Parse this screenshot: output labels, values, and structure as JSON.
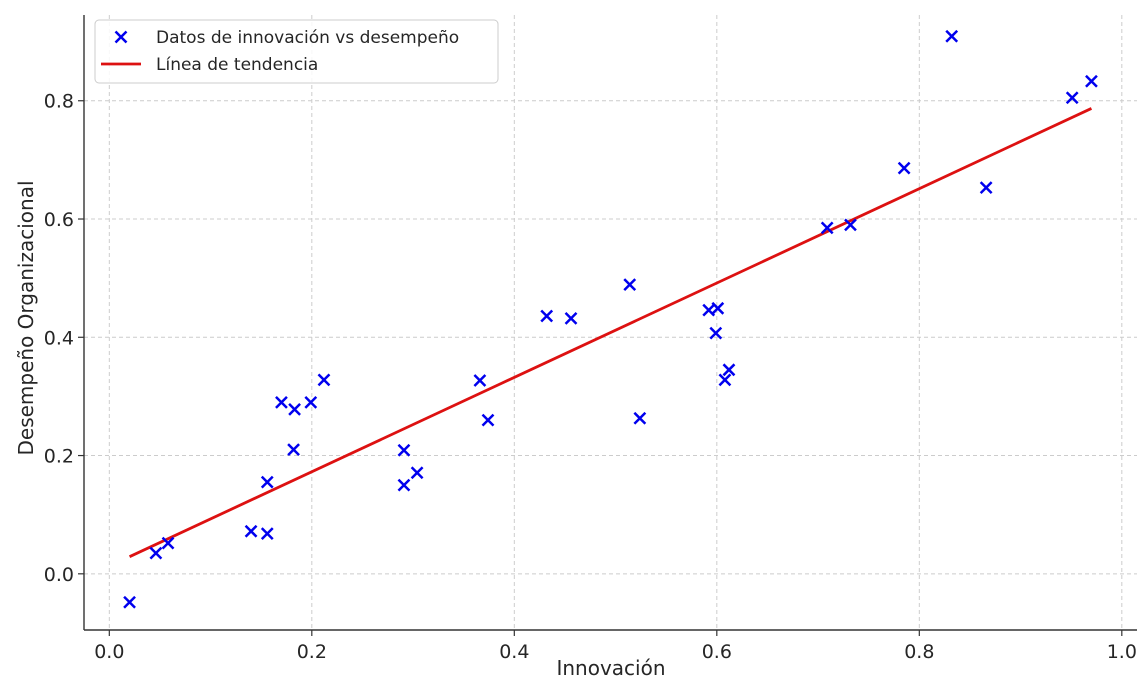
{
  "chart_data": {
    "type": "scatter",
    "xlabel": "Innovación",
    "ylabel": "Desempeño Organizacional",
    "xlim": [
      -0.025,
      1.015
    ],
    "ylim": [
      -0.095,
      0.945
    ],
    "xticks": [
      0.0,
      0.2,
      0.4,
      0.6,
      0.8,
      1.0
    ],
    "xtick_labels": [
      "0.0",
      "0.2",
      "0.4",
      "0.6",
      "0.8",
      "1.0"
    ],
    "yticks": [
      0.0,
      0.2,
      0.4,
      0.6,
      0.8
    ],
    "ytick_labels": [
      "0.0",
      "0.2",
      "0.4",
      "0.6",
      "0.8"
    ],
    "grid": true,
    "legend_position": "top-left",
    "series": [
      {
        "name": "Datos de innovación vs desempeño",
        "kind": "scatter",
        "marker": "x",
        "color": "#0000ee",
        "points": [
          [
            0.02,
            -0.048
          ],
          [
            0.046,
            0.035
          ],
          [
            0.058,
            0.052
          ],
          [
            0.14,
            0.072
          ],
          [
            0.156,
            0.068
          ],
          [
            0.156,
            0.155
          ],
          [
            0.17,
            0.29
          ],
          [
            0.182,
            0.21
          ],
          [
            0.183,
            0.278
          ],
          [
            0.199,
            0.29
          ],
          [
            0.212,
            0.328
          ],
          [
            0.291,
            0.209
          ],
          [
            0.291,
            0.15
          ],
          [
            0.304,
            0.171
          ],
          [
            0.366,
            0.327
          ],
          [
            0.374,
            0.26
          ],
          [
            0.432,
            0.436
          ],
          [
            0.456,
            0.432
          ],
          [
            0.514,
            0.489
          ],
          [
            0.524,
            0.263
          ],
          [
            0.592,
            0.446
          ],
          [
            0.599,
            0.407
          ],
          [
            0.601,
            0.449
          ],
          [
            0.608,
            0.328
          ],
          [
            0.612,
            0.345
          ],
          [
            0.709,
            0.585
          ],
          [
            0.732,
            0.59
          ],
          [
            0.785,
            0.686
          ],
          [
            0.832,
            0.909
          ],
          [
            0.866,
            0.653
          ],
          [
            0.951,
            0.805
          ],
          [
            0.97,
            0.833
          ]
        ]
      },
      {
        "name": "Línea de tendencia",
        "kind": "line",
        "color": "#dd1111",
        "points": [
          [
            0.02,
            0.029
          ],
          [
            0.97,
            0.787
          ]
        ]
      }
    ]
  }
}
